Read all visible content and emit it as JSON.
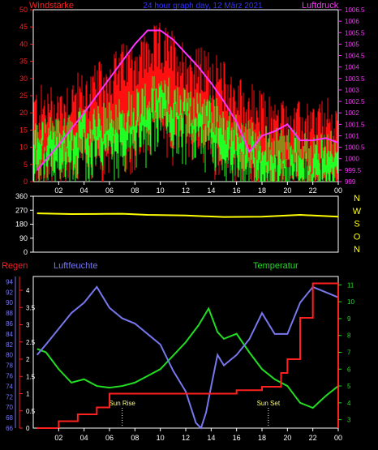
{
  "chart_data": [
    {
      "type": "bar",
      "title": "24 hour graph day, 12 März 2021",
      "left_label": "Windstärke",
      "right_label": "Luftdruck",
      "x_ticks": [
        "02",
        "04",
        "06",
        "08",
        "10",
        "12",
        "14",
        "16",
        "18",
        "20",
        "22",
        "00"
      ],
      "y_left_ticks": [
        "0",
        "5",
        "10",
        "15",
        "20",
        "25",
        "30",
        "35",
        "40",
        "45",
        "50"
      ],
      "ylim_left": [
        0,
        50
      ],
      "y_right_ticks": [
        "999",
        "999.5",
        "1000",
        "1000.5",
        "1001",
        "1001.5",
        "1002",
        "1002.5",
        "1003",
        "1003.5",
        "1004",
        "1004.5",
        "1005",
        "1005.5",
        "1006",
        "1006.5"
      ],
      "ylim_right": [
        999,
        1006.5
      ],
      "wind_gust_anchors": [
        [
          1,
          19
        ],
        [
          2,
          20
        ],
        [
          3,
          22
        ],
        [
          4,
          23
        ],
        [
          5,
          25
        ],
        [
          6,
          28
        ],
        [
          7,
          31
        ],
        [
          8,
          33
        ],
        [
          9,
          35
        ],
        [
          10,
          37
        ],
        [
          11,
          35
        ],
        [
          12,
          32
        ],
        [
          13,
          30
        ],
        [
          14,
          29
        ],
        [
          15,
          26
        ],
        [
          16,
          22
        ],
        [
          17,
          20
        ],
        [
          18,
          17
        ],
        [
          19,
          16
        ],
        [
          20,
          15
        ],
        [
          21,
          14
        ],
        [
          22,
          14
        ],
        [
          23,
          15
        ],
        [
          24,
          14
        ]
      ],
      "wind_mean_anchors": [
        [
          1,
          13
        ],
        [
          2,
          14
        ],
        [
          3,
          15
        ],
        [
          4,
          16
        ],
        [
          5,
          16
        ],
        [
          6,
          18
        ],
        [
          7,
          20
        ],
        [
          8,
          22
        ],
        [
          9,
          24
        ],
        [
          10,
          26
        ],
        [
          11,
          24
        ],
        [
          12,
          22
        ],
        [
          13,
          21
        ],
        [
          14,
          20
        ],
        [
          15,
          17
        ],
        [
          16,
          14
        ],
        [
          17,
          12
        ],
        [
          18,
          11
        ],
        [
          19,
          10
        ],
        [
          20,
          10
        ],
        [
          21,
          9
        ],
        [
          22,
          8
        ],
        [
          23,
          10
        ],
        [
          24,
          10
        ]
      ],
      "series": [
        {
          "name": "Luftdruck",
          "color": "#ff33ff",
          "points": [
            [
              0.3,
              999.5
            ],
            [
              2,
              1000.6
            ],
            [
              4,
              1002.0
            ],
            [
              6,
              1003.5
            ],
            [
              8,
              1005.0
            ],
            [
              9,
              1005.6
            ],
            [
              10,
              1005.6
            ],
            [
              11,
              1005.2
            ],
            [
              12,
              1004.6
            ],
            [
              13,
              1004.0
            ],
            [
              14,
              1003.3
            ],
            [
              15,
              1002.5
            ],
            [
              16,
              1001.6
            ],
            [
              17,
              1000.3
            ],
            [
              18,
              1001.0
            ],
            [
              19,
              1001.2
            ],
            [
              20,
              1001.5
            ],
            [
              21,
              1000.8
            ],
            [
              22,
              1000.8
            ],
            [
              23,
              1000.9
            ],
            [
              24,
              1000.7
            ]
          ]
        }
      ]
    },
    {
      "type": "line",
      "left_label": "",
      "y_ticks": [
        "0",
        "90",
        "180",
        "270",
        "360"
      ],
      "ylim": [
        0,
        360
      ],
      "right_labels": [
        "N",
        "W",
        "S",
        "O",
        "N"
      ],
      "series": [
        {
          "name": "",
          "color": "#ffff00",
          "points": [
            [
              0.3,
              250
            ],
            [
              3,
              245
            ],
            [
              5,
              246
            ],
            [
              7,
              247
            ],
            [
              9,
              240
            ],
            [
              12,
              236
            ],
            [
              15,
              226
            ],
            [
              18,
              228
            ],
            [
              21,
              240
            ],
            [
              24,
              228
            ]
          ]
        }
      ]
    },
    {
      "type": "line",
      "left_label_rain": "Regen",
      "left_label_humidity": "Luftfeuchte",
      "right_label": "Temperatur",
      "x_ticks": [
        "02",
        "04",
        "06",
        "08",
        "10",
        "12",
        "14",
        "16",
        "18",
        "20",
        "22",
        "00"
      ],
      "rain_ticks": [
        "0",
        "0.5",
        "1",
        "1.5",
        "2",
        "2.5",
        "3",
        "3.5",
        "4"
      ],
      "rain_range": [
        0,
        4.4
      ],
      "humidity_ticks": [
        "66",
        "68",
        "70",
        "72",
        "74",
        "76",
        "78",
        "80",
        "82",
        "84",
        "86",
        "88",
        "90",
        "92",
        "94"
      ],
      "humidity_range": [
        66,
        95
      ],
      "temp_ticks": [
        "3",
        "4",
        "5",
        "6",
        "7",
        "8",
        "9",
        "10",
        "11"
      ],
      "temp_range": [
        2.5,
        11.5
      ],
      "annotations": [
        {
          "label": "Sun Rise",
          "x": 7.0
        },
        {
          "label": "Sun Set",
          "x": 18.5
        }
      ],
      "series": [
        {
          "name": "Regen",
          "color": "#ff2020",
          "points": [
            [
              0.3,
              0
            ],
            [
              2,
              0
            ],
            [
              2,
              0.2
            ],
            [
              3.5,
              0.2
            ],
            [
              3.5,
              0.4
            ],
            [
              5,
              0.4
            ],
            [
              5,
              0.6
            ],
            [
              6,
              0.6
            ],
            [
              6,
              1.0
            ],
            [
              16,
              1.0
            ],
            [
              16,
              1.1
            ],
            [
              18,
              1.1
            ],
            [
              18,
              1.2
            ],
            [
              19.5,
              1.2
            ],
            [
              19.5,
              1.6
            ],
            [
              20,
              1.6
            ],
            [
              20,
              2.0
            ],
            [
              21,
              2.0
            ],
            [
              21,
              3.2
            ],
            [
              22,
              3.2
            ],
            [
              22,
              4.2
            ],
            [
              24,
              4.2
            ],
            [
              24,
              0
            ]
          ]
        },
        {
          "name": "Luftfeuchte",
          "color": "#7777ee",
          "points": [
            [
              0.3,
              80
            ],
            [
              1,
              82
            ],
            [
              2,
              85
            ],
            [
              3,
              88
            ],
            [
              4,
              90
            ],
            [
              5,
              93
            ],
            [
              6,
              89
            ],
            [
              7,
              87
            ],
            [
              8,
              86
            ],
            [
              9,
              84
            ],
            [
              10,
              82
            ],
            [
              11,
              77
            ],
            [
              12,
              73
            ],
            [
              12.8,
              67
            ],
            [
              13.2,
              66
            ],
            [
              13.6,
              69
            ],
            [
              14,
              74
            ],
            [
              14.5,
              80
            ],
            [
              15,
              78
            ],
            [
              16,
              80
            ],
            [
              17,
              83
            ],
            [
              18,
              88
            ],
            [
              19,
              84
            ],
            [
              20,
              84
            ],
            [
              20.5,
              87
            ],
            [
              21,
              90
            ],
            [
              22,
              93
            ],
            [
              23,
              92
            ],
            [
              24,
              91
            ]
          ]
        },
        {
          "name": "Temperatur",
          "color": "#22dd22",
          "points": [
            [
              0.3,
              7.2
            ],
            [
              1,
              7
            ],
            [
              2,
              6
            ],
            [
              3,
              5.2
            ],
            [
              4,
              5.4
            ],
            [
              5,
              5
            ],
            [
              6,
              4.9
            ],
            [
              7,
              5.0
            ],
            [
              8,
              5.2
            ],
            [
              9,
              5.6
            ],
            [
              10,
              6
            ],
            [
              11,
              6.8
            ],
            [
              12,
              7.6
            ],
            [
              13,
              8.6
            ],
            [
              13.8,
              9.6
            ],
            [
              14.5,
              8.2
            ],
            [
              15,
              7.8
            ],
            [
              16,
              8.1
            ],
            [
              17,
              7
            ],
            [
              18,
              6
            ],
            [
              19,
              5.4
            ],
            [
              20,
              5
            ],
            [
              21,
              4
            ],
            [
              22,
              3.7
            ],
            [
              23,
              4.4
            ],
            [
              24,
              5
            ]
          ]
        }
      ]
    }
  ]
}
